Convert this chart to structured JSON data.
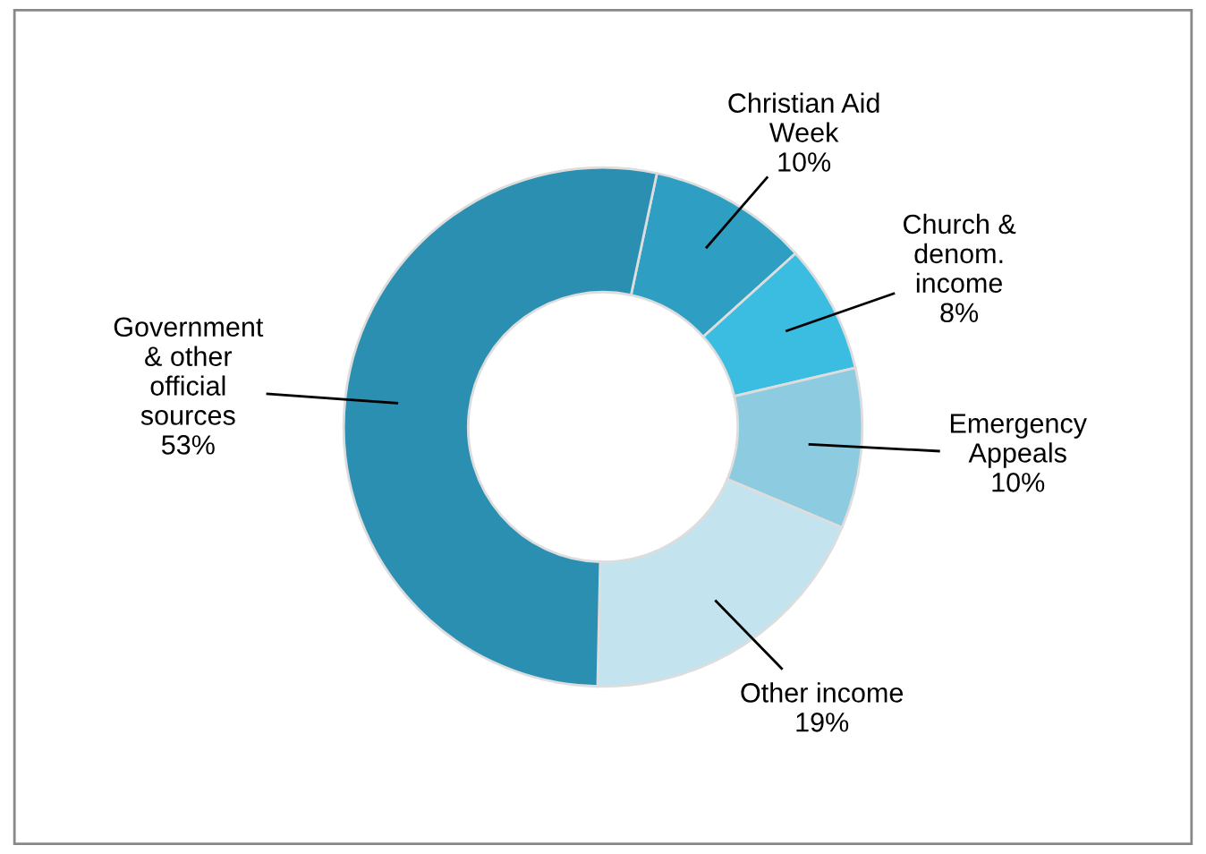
{
  "chart_data": {
    "type": "donut",
    "categories": [
      "Christian Aid\nWeek",
      "Church &\ndenom.\nincome",
      "Emergency\nAppeals",
      "Other income",
      "Government\n& other\nofficial\nsources"
    ],
    "values": [
      10,
      8,
      10,
      19,
      53
    ],
    "colors": [
      "#2e9fc2",
      "#3bbde2",
      "#8ccbe0",
      "#c3e3ef",
      "#2a8fb0"
    ],
    "value_labels": [
      "10%",
      "8%",
      "10%",
      "19%",
      "53%"
    ],
    "legend": false
  }
}
